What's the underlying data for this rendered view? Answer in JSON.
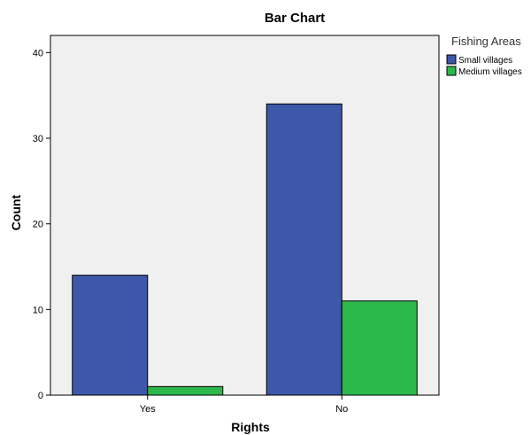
{
  "chart_data": {
    "type": "bar",
    "title": "Bar Chart",
    "xlabel": "Rights",
    "ylabel": "Count",
    "categories": [
      "Yes",
      "No"
    ],
    "series": [
      {
        "name": "Small villages",
        "values": [
          14,
          34
        ],
        "color": "#3d58a8"
      },
      {
        "name": "Medium villages",
        "values": [
          1,
          11
        ],
        "color": "#2db84b"
      }
    ],
    "ylim": [
      0,
      42
    ],
    "yticks": [
      "0",
      "10",
      "20",
      "30",
      "40"
    ],
    "legend_title": "Fishing Areas",
    "legend_placement": "top-right",
    "plot_background": "#f0f0f0",
    "grid": false
  }
}
